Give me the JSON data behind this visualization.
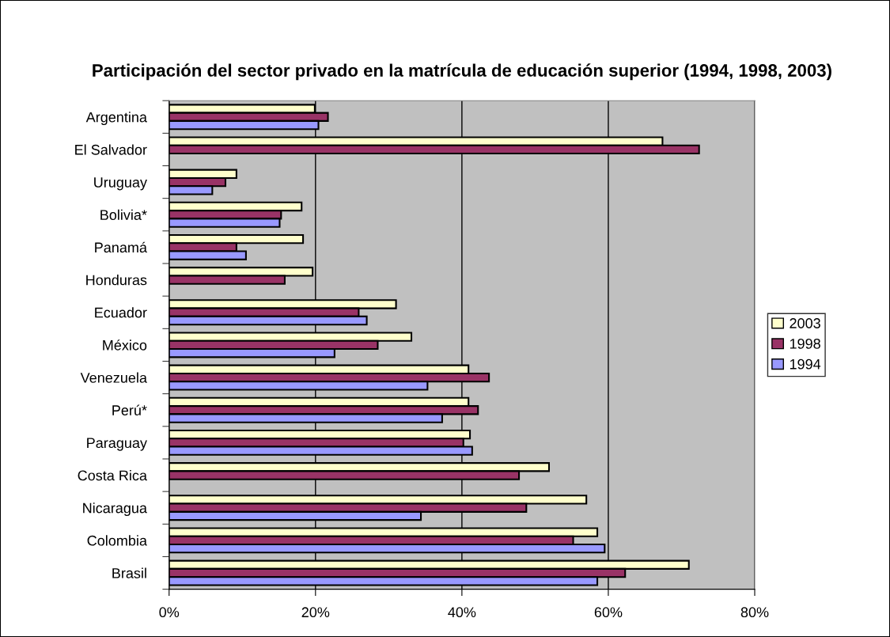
{
  "chart_data": {
    "type": "bar",
    "orientation": "horizontal",
    "title": "Participación del sector privado en la matrícula de educación superior (1994, 1998, 2003)",
    "categories": [
      "Argentina",
      "El Salvador",
      "Uruguay",
      "Bolivia*",
      "Panamá",
      "Honduras",
      "Ecuador",
      "México",
      "Venezuela",
      "Perú*",
      "Paraguay",
      "Costa Rica",
      "Nicaragua",
      "Colombia",
      "Brasil"
    ],
    "series": [
      {
        "name": "2003",
        "color": "#ffffcc",
        "values": [
          19.9,
          67.4,
          9.2,
          18.1,
          18.3,
          19.6,
          31.0,
          33.1,
          40.9,
          40.9,
          41.1,
          51.9,
          57.0,
          58.5,
          71.0
        ]
      },
      {
        "name": "1998",
        "color": "#993366",
        "values": [
          21.7,
          72.4,
          7.7,
          15.3,
          9.2,
          15.8,
          25.9,
          28.5,
          43.7,
          42.2,
          40.2,
          47.8,
          48.8,
          55.2,
          62.3
        ]
      },
      {
        "name": "1994",
        "color": "#9999ff",
        "values": [
          20.4,
          null,
          5.9,
          15.1,
          10.5,
          null,
          27.0,
          22.6,
          35.3,
          37.3,
          41.4,
          null,
          34.4,
          59.5,
          58.5
        ]
      }
    ],
    "xlim": [
      0,
      80
    ],
    "xticks": [
      {
        "value": 0,
        "label": "0%"
      },
      {
        "value": 20,
        "label": "20%"
      },
      {
        "value": 40,
        "label": "40%"
      },
      {
        "value": 60,
        "label": "60%"
      },
      {
        "value": 80,
        "label": "80%"
      }
    ],
    "grid": "x",
    "legend": "right"
  }
}
